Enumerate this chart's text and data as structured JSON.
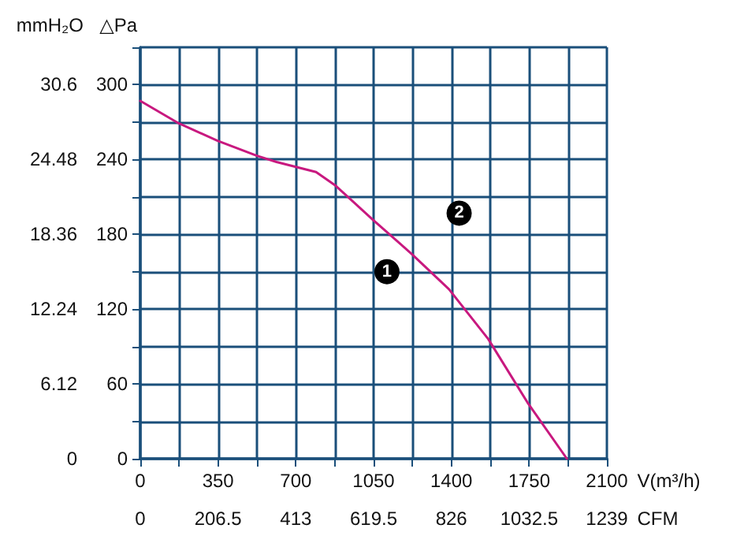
{
  "chart_data": {
    "type": "line",
    "xlabel": "V(m³/h)",
    "x2label": "CFM",
    "ylabel": "△Pa",
    "y2label": "mmH₂O",
    "xlim": [
      0,
      2100
    ],
    "xticks": [
      0,
      {
        "value": 175,
        "label": null
      },
      350,
      {
        "value": 525,
        "label": null
      },
      700,
      {
        "value": 875,
        "label": null
      },
      1050,
      {
        "value": 1225,
        "label": null
      },
      1400,
      {
        "value": 1575,
        "label": null
      },
      1750,
      {
        "value": 1925,
        "label": null
      },
      2100
    ],
    "x2lim": [
      0,
      1239
    ],
    "x2ticks": [
      0,
      206.5,
      413,
      619.5,
      826,
      1032.5,
      1239
    ],
    "ylim": [
      0,
      330
    ],
    "yticks": [
      0,
      {
        "value": 30,
        "label": null
      },
      60,
      {
        "value": 90,
        "label": null
      },
      120,
      {
        "value": 150,
        "label": null
      },
      180,
      {
        "value": 210,
        "label": null
      },
      240,
      {
        "value": 270,
        "label": null
      },
      300,
      {
        "value": 330,
        "label": null
      }
    ],
    "y2lim": [
      0,
      33.66
    ],
    "y2ticks": [
      0,
      6.12,
      12.24,
      18.36,
      24.48,
      30.6
    ],
    "grid": true,
    "marker": "none",
    "line_style": "solid",
    "series": [
      {
        "color": "#c8197f",
        "x": [
          0,
          173,
          348,
          525,
          613,
          791,
          879,
          1045,
          1223,
          1389,
          1566,
          1743,
          1920
        ],
        "values": [
          287,
          269,
          255,
          243,
          238,
          230,
          219,
          192,
          164,
          136,
          96,
          45,
          0
        ]
      }
    ],
    "annotations": [
      {
        "text": "1",
        "x": 1110,
        "y": 150
      },
      {
        "text": "2",
        "x": 1435,
        "y": 197
      }
    ]
  }
}
